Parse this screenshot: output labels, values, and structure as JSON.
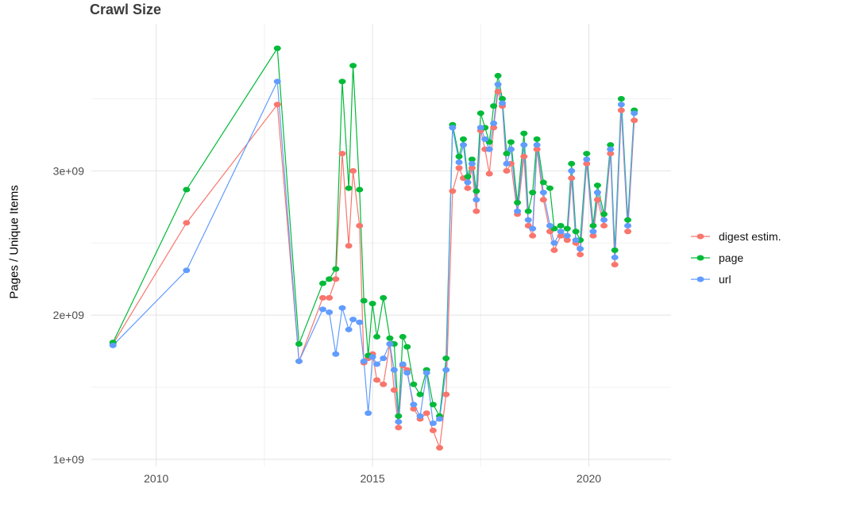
{
  "title": "Crawl Size",
  "colors": {
    "digest": "#F8766D",
    "page": "#00BA38",
    "url": "#619CFF",
    "grid_major": "#e3e3e3",
    "grid_minor": "#f1f1f1",
    "tick_text": "#4d4d4d",
    "background": "#ffffff"
  },
  "legend": {
    "position": "right",
    "items": [
      {
        "label": "digest estim.",
        "color": "#F8766D"
      },
      {
        "label": "page",
        "color": "#00BA38"
      },
      {
        "label": "url",
        "color": "#619CFF"
      }
    ]
  },
  "chart_data": {
    "type": "line",
    "title": "Crawl Size",
    "xlabel": "",
    "ylabel": "Pages / Unique Items",
    "legend_position": "right",
    "grid": true,
    "xlim": [
      2008.5,
      2021.9
    ],
    "ylim": [
      950000000.0,
      4020000000.0
    ],
    "xticks": [
      {
        "value": 2010,
        "label": "2010"
      },
      {
        "value": 2015,
        "label": "2015"
      },
      {
        "value": 2020,
        "label": "2020"
      }
    ],
    "yticks": [
      {
        "value": 1000000000.0,
        "label": "1e+09"
      },
      {
        "value": 2000000000.0,
        "label": "2e+09"
      },
      {
        "value": 3000000000.0,
        "label": "3e+09"
      }
    ],
    "minor_xticks": [
      2012.5,
      2017.5
    ],
    "minor_yticks": [
      1500000000.0,
      2500000000.0,
      3500000000.0
    ],
    "x": [
      2009.0,
      2010.7,
      2012.8,
      2013.3,
      2013.85,
      2014.0,
      2014.15,
      2014.3,
      2014.45,
      2014.55,
      2014.7,
      2014.8,
      2014.9,
      2015.0,
      2015.1,
      2015.25,
      2015.4,
      2015.5,
      2015.6,
      2015.7,
      2015.8,
      2015.95,
      2016.1,
      2016.25,
      2016.4,
      2016.55,
      2016.7,
      2016.85,
      2017.0,
      2017.1,
      2017.2,
      2017.3,
      2017.4,
      2017.5,
      2017.6,
      2017.7,
      2017.8,
      2017.9,
      2018.0,
      2018.1,
      2018.2,
      2018.35,
      2018.5,
      2018.6,
      2018.7,
      2018.8,
      2018.95,
      2019.1,
      2019.2,
      2019.35,
      2019.5,
      2019.6,
      2019.7,
      2019.8,
      2019.95,
      2020.1,
      2020.2,
      2020.35,
      2020.5,
      2020.6,
      2020.75,
      2020.9,
      2021.05
    ],
    "series": [
      {
        "name": "digest estim.",
        "color": "#F8766D",
        "values": [
          1800000000.0,
          2640000000.0,
          3460000000.0,
          1680000000.0,
          2120000000.0,
          2120000000.0,
          2250000000.0,
          3120000000.0,
          2480000000.0,
          3000000000.0,
          2620000000.0,
          1670000000.0,
          1700000000.0,
          1730000000.0,
          1550000000.0,
          1520000000.0,
          1800000000.0,
          1480000000.0,
          1220000000.0,
          1650000000.0,
          1620000000.0,
          1350000000.0,
          1280000000.0,
          1320000000.0,
          1200000000.0,
          1080000000.0,
          1450000000.0,
          2860000000.0,
          3020000000.0,
          2950000000.0,
          2880000000.0,
          3020000000.0,
          2720000000.0,
          3280000000.0,
          3150000000.0,
          2980000000.0,
          3300000000.0,
          3550000000.0,
          3450000000.0,
          3000000000.0,
          3050000000.0,
          2700000000.0,
          3100000000.0,
          2620000000.0,
          2550000000.0,
          3150000000.0,
          2800000000.0,
          2580000000.0,
          2450000000.0,
          2550000000.0,
          2520000000.0,
          2950000000.0,
          2500000000.0,
          2420000000.0,
          3050000000.0,
          2550000000.0,
          2800000000.0,
          2620000000.0,
          3120000000.0,
          2350000000.0,
          3420000000.0,
          2580000000.0,
          3350000000.0
        ]
      },
      {
        "name": "page",
        "color": "#00BA38",
        "values": [
          1810000000.0,
          2870000000.0,
          3850000000.0,
          1800000000.0,
          2220000000.0,
          2250000000.0,
          2320000000.0,
          3620000000.0,
          2880000000.0,
          3730000000.0,
          2870000000.0,
          2100000000.0,
          1720000000.0,
          2080000000.0,
          1850000000.0,
          2120000000.0,
          1840000000.0,
          1800000000.0,
          1300000000.0,
          1850000000.0,
          1780000000.0,
          1520000000.0,
          1450000000.0,
          1620000000.0,
          1380000000.0,
          1300000000.0,
          1700000000.0,
          3320000000.0,
          3100000000.0,
          3220000000.0,
          2960000000.0,
          3080000000.0,
          2860000000.0,
          3400000000.0,
          3300000000.0,
          3200000000.0,
          3450000000.0,
          3660000000.0,
          3500000000.0,
          3120000000.0,
          3200000000.0,
          2780000000.0,
          3260000000.0,
          2720000000.0,
          2850000000.0,
          3220000000.0,
          2920000000.0,
          2880000000.0,
          2600000000.0,
          2620000000.0,
          2600000000.0,
          3050000000.0,
          2580000000.0,
          2520000000.0,
          3120000000.0,
          2620000000.0,
          2900000000.0,
          2700000000.0,
          3180000000.0,
          2450000000.0,
          3500000000.0,
          2660000000.0,
          3420000000.0
        ]
      },
      {
        "name": "url",
        "color": "#619CFF",
        "values": [
          1790000000.0,
          2310000000.0,
          3620000000.0,
          1680000000.0,
          2040000000.0,
          2020000000.0,
          1730000000.0,
          2050000000.0,
          1900000000.0,
          1970000000.0,
          1950000000.0,
          1680000000.0,
          1320000000.0,
          1710000000.0,
          1660000000.0,
          1700000000.0,
          1800000000.0,
          1620000000.0,
          1260000000.0,
          1660000000.0,
          1600000000.0,
          1380000000.0,
          1300000000.0,
          1600000000.0,
          1250000000.0,
          1280000000.0,
          1620000000.0,
          3300000000.0,
          3060000000.0,
          3180000000.0,
          2920000000.0,
          3050000000.0,
          2800000000.0,
          3300000000.0,
          3220000000.0,
          3150000000.0,
          3330000000.0,
          3600000000.0,
          3470000000.0,
          3050000000.0,
          3150000000.0,
          2720000000.0,
          3180000000.0,
          2660000000.0,
          2600000000.0,
          3180000000.0,
          2850000000.0,
          2620000000.0,
          2500000000.0,
          2580000000.0,
          2550000000.0,
          3000000000.0,
          2520000000.0,
          2460000000.0,
          3080000000.0,
          2580000000.0,
          2850000000.0,
          2660000000.0,
          3150000000.0,
          2400000000.0,
          3460000000.0,
          2620000000.0,
          3400000000.0
        ]
      }
    ]
  }
}
